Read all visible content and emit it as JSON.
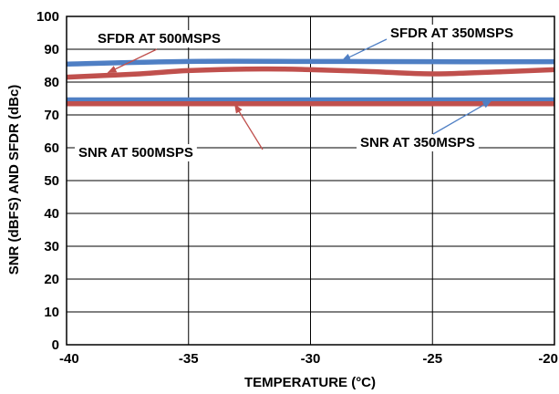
{
  "chart_data": {
    "type": "line",
    "xlabel": "TEMPERATURE (°C)",
    "ylabel": "SNR (dBFS) AND SFDR (dBc)",
    "xlim": [
      -40,
      -20
    ],
    "ylim": [
      0,
      100
    ],
    "xticks": [
      "-40",
      "-35",
      "-30",
      "-25",
      "-20"
    ],
    "yticks": [
      "0",
      "10",
      "20",
      "30",
      "40",
      "50",
      "60",
      "70",
      "80",
      "90",
      "100"
    ],
    "grid": true,
    "series": [
      {
        "name": "SFDR AT 350MSPS",
        "color": "#4f7fc4",
        "x": [
          -40,
          -35,
          -30,
          -25,
          -20
        ],
        "y": [
          85.5,
          86.3,
          86.3,
          86.2,
          86.2
        ]
      },
      {
        "name": "SFDR AT 500MSPS",
        "color": "#c0504d",
        "x": [
          -40,
          -37,
          -35,
          -32,
          -30,
          -27.5,
          -25,
          -22,
          -20
        ],
        "y": [
          81.5,
          82.5,
          83.5,
          84.0,
          83.8,
          83.2,
          82.5,
          83.2,
          83.8
        ]
      },
      {
        "name": "SNR AT 350MSPS",
        "color": "#4f7fc4",
        "x": [
          -40,
          -35,
          -30,
          -25,
          -20
        ],
        "y": [
          74.6,
          74.6,
          74.6,
          74.6,
          74.6
        ]
      },
      {
        "name": "SNR AT 500MSPS",
        "color": "#c0504d",
        "x": [
          -40,
          -35,
          -30,
          -25,
          -20
        ],
        "y": [
          73.4,
          73.4,
          73.4,
          73.4,
          73.4
        ]
      }
    ],
    "annotations": [
      {
        "text": "SFDR AT 500MSPS",
        "series": 1
      },
      {
        "text": "SFDR AT 350MSPS",
        "series": 0
      },
      {
        "text": "SNR AT 500MSPS",
        "series": 3
      },
      {
        "text": "SNR AT 350MSPS",
        "series": 2
      }
    ]
  }
}
